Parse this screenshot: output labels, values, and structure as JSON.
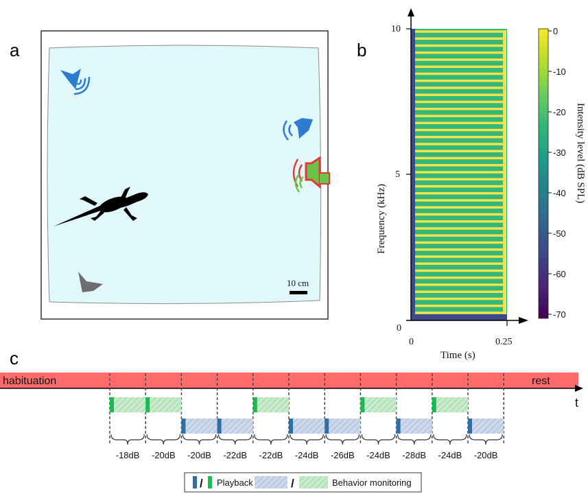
{
  "panels": {
    "a": {
      "label": "a",
      "scale_bar_label": "10 cm"
    },
    "b": {
      "label": "b",
      "y_axis_title": "Frequency (kHz)",
      "x_axis_title": "Time (s)",
      "y_ticks": [
        "0",
        "5",
        "10"
      ],
      "x_ticks": [
        "0",
        "0.25"
      ],
      "colorbar_title": "Intensity level (dB SPL)",
      "colorbar_ticks": [
        "0",
        "-10",
        "-20",
        "-30",
        "-40",
        "-50",
        "-60",
        "-70"
      ],
      "colorbar_colors": [
        "#fde725",
        "#b5de2b",
        "#6ece58",
        "#35b779",
        "#1f9e89",
        "#26828e",
        "#31688e",
        "#3e4989",
        "#482878",
        "#440154"
      ]
    },
    "c": {
      "label": "c",
      "habituation_label": "habituation",
      "rest_label": "rest",
      "time_label": "t",
      "timeline_color": "#ff6b6b",
      "trials": [
        {
          "type": "green",
          "db": "-18dB"
        },
        {
          "type": "green",
          "db": "-20dB"
        },
        {
          "type": "blue",
          "db": "-20dB"
        },
        {
          "type": "blue",
          "db": "-22dB"
        },
        {
          "type": "green",
          "db": "-22dB"
        },
        {
          "type": "blue",
          "db": "-24dB"
        },
        {
          "type": "blue",
          "db": "-26dB"
        },
        {
          "type": "green",
          "db": "-24dB"
        },
        {
          "type": "blue",
          "db": "-28dB"
        },
        {
          "type": "green",
          "db": "-24dB"
        },
        {
          "type": "blue",
          "db": "-20dB"
        }
      ],
      "legend": {
        "playback_label": "Playback",
        "monitoring_label": "Behavior monitoring",
        "separator": "/"
      },
      "colors": {
        "green_playback": "#1db954",
        "green_monitor": "#b9e3bf",
        "blue_playback": "#2f6fa8",
        "blue_monitor": "#c2d0e6"
      }
    }
  }
}
